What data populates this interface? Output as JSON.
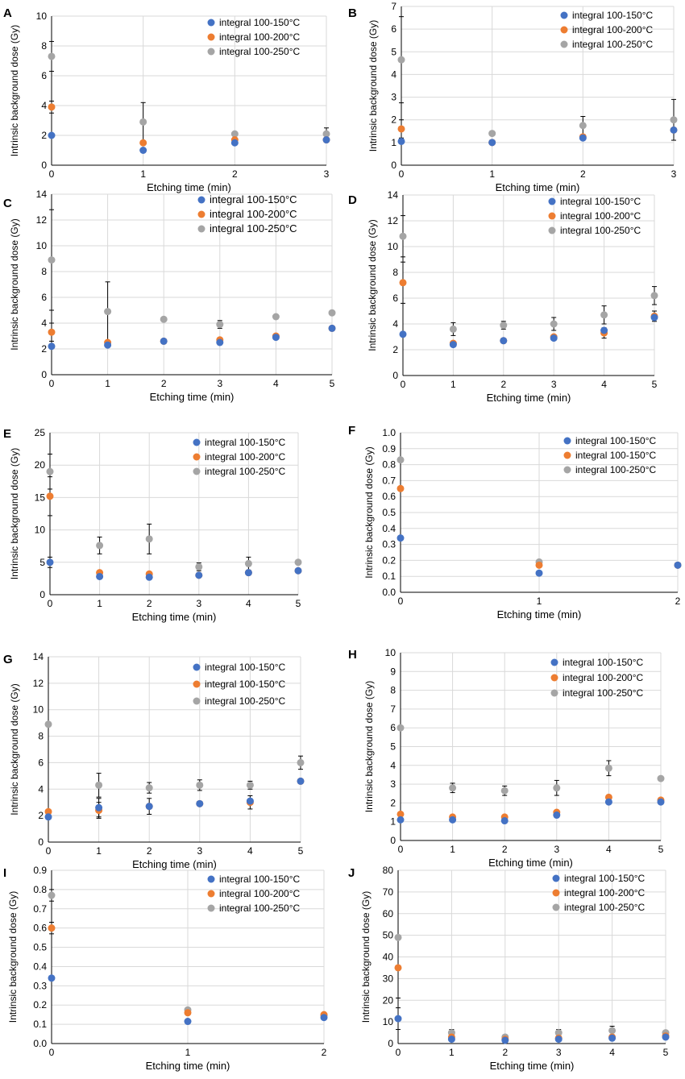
{
  "figure": {
    "colors": {
      "s1": "#4472C4",
      "s2": "#ED7D31",
      "s3": "#A5A5A5",
      "grid": "#D9D9D9",
      "axis": "#000000",
      "error": "#000000"
    }
  },
  "chart_data": [
    {
      "panel": "A",
      "type": "scatter",
      "xlabel": "Etching time (min)",
      "ylabel": "Intrinsic background dose (Gy)",
      "xlim": [
        0,
        3
      ],
      "ylim": [
        0,
        10
      ],
      "xticks": [
        0,
        1,
        2,
        3
      ],
      "yticks": [
        0,
        2,
        4,
        6,
        8,
        10
      ],
      "legend_position": "top-right",
      "grid": true,
      "series": [
        {
          "name": "integral 100-150°C",
          "x": [
            0,
            1,
            2,
            3
          ],
          "y": [
            2.0,
            1.0,
            1.5,
            1.7
          ],
          "err": [
            0,
            0,
            0,
            0
          ]
        },
        {
          "name": "integral 100-200°C",
          "x": [
            0,
            1,
            2,
            3
          ],
          "y": [
            3.9,
            1.5,
            1.7,
            1.7
          ],
          "err": [
            0.4,
            0,
            0,
            0
          ]
        },
        {
          "name": "integral 100-250°C",
          "x": [
            0,
            1,
            2,
            3
          ],
          "y": [
            7.3,
            2.9,
            2.1,
            2.1
          ],
          "err": [
            1.0,
            1.3,
            0,
            0.4
          ]
        }
      ]
    },
    {
      "panel": "B",
      "type": "scatter",
      "xlabel": "Etching time (min)",
      "ylabel": "Intrinsic background dose (Gy)",
      "xlim": [
        0,
        3
      ],
      "ylim": [
        0,
        7
      ],
      "xticks": [
        0,
        1,
        2,
        3
      ],
      "yticks": [
        0,
        1,
        2,
        3,
        4,
        5,
        6,
        7
      ],
      "legend_position": "top-right",
      "grid": true,
      "series": [
        {
          "name": "integral 100-150°C",
          "x": [
            0,
            1,
            2,
            3
          ],
          "y": [
            1.05,
            1.0,
            1.2,
            1.55
          ],
          "err": [
            0,
            0,
            0,
            0
          ]
        },
        {
          "name": "integral 100-200°C",
          "x": [
            0,
            1,
            2,
            3
          ],
          "y": [
            1.6,
            1.0,
            1.25,
            1.55
          ],
          "err": [
            0.4,
            0,
            0,
            0
          ]
        },
        {
          "name": "integral 100-250°C",
          "x": [
            0,
            1,
            2,
            3
          ],
          "y": [
            4.65,
            1.4,
            1.75,
            2.0
          ],
          "err": [
            1.9,
            0,
            0.4,
            0.9
          ]
        }
      ]
    },
    {
      "panel": "C",
      "type": "scatter",
      "xlabel": "Etching time (min)",
      "ylabel": "Intrinsic background dose (Gy)",
      "xlim": [
        0,
        5
      ],
      "ylim": [
        0,
        14
      ],
      "xticks": [
        0,
        1,
        2,
        3,
        4,
        5
      ],
      "yticks": [
        0,
        2,
        4,
        6,
        8,
        10,
        12,
        14
      ],
      "legend_position": "top-right",
      "grid": true,
      "series": [
        {
          "name": "integral 100-150°C",
          "x": [
            0,
            1,
            2,
            3,
            4,
            5
          ],
          "y": [
            2.2,
            2.3,
            2.6,
            2.5,
            2.9,
            3.6
          ],
          "err": [
            0,
            0,
            0,
            0,
            0,
            0
          ]
        },
        {
          "name": "integral 100-200°C",
          "x": [
            0,
            1,
            2,
            3,
            4,
            5
          ],
          "y": [
            3.3,
            2.5,
            2.6,
            2.7,
            3.0,
            3.6
          ],
          "err": [
            0.7,
            0,
            0,
            0,
            0,
            0
          ]
        },
        {
          "name": "integral 100-250°C",
          "x": [
            0,
            1,
            2,
            3,
            4,
            5
          ],
          "y": [
            8.9,
            4.9,
            4.3,
            3.9,
            4.5,
            4.8
          ],
          "err": [
            3.9,
            2.3,
            0,
            0.3,
            0,
            0
          ]
        }
      ]
    },
    {
      "panel": "D",
      "type": "scatter",
      "xlabel": "Etching time (min)",
      "ylabel": "Intrinsic background dose (Gy)",
      "xlim": [
        0,
        5
      ],
      "ylim": [
        0,
        14
      ],
      "xticks": [
        0,
        1,
        2,
        3,
        4,
        5
      ],
      "yticks": [
        0,
        2,
        4,
        6,
        8,
        10,
        12,
        14
      ],
      "legend_position": "top-right",
      "grid": true,
      "series": [
        {
          "name": "integral 100-150°C",
          "x": [
            0,
            1,
            2,
            3,
            4,
            5
          ],
          "y": [
            3.2,
            2.4,
            2.7,
            2.9,
            3.5,
            4.5
          ],
          "err": [
            0,
            0,
            0,
            0,
            0,
            0
          ]
        },
        {
          "name": "integral 100-200°C",
          "x": [
            0,
            1,
            2,
            3,
            4,
            5
          ],
          "y": [
            7.2,
            2.5,
            2.7,
            3.0,
            3.3,
            4.6
          ],
          "err": [
            1.6,
            0,
            0,
            0,
            0.4,
            0.4
          ]
        },
        {
          "name": "integral 100-250°C",
          "x": [
            0,
            1,
            2,
            3,
            4,
            5
          ],
          "y": [
            10.8,
            3.6,
            3.9,
            4.0,
            4.7,
            6.2
          ],
          "err": [
            1.6,
            0.5,
            0.3,
            0.5,
            0.7,
            0.7
          ]
        }
      ]
    },
    {
      "panel": "E",
      "type": "scatter",
      "xlabel": "Etching time (min)",
      "ylabel": "Intrinsic background dose (Gy)",
      "xlim": [
        0,
        5
      ],
      "ylim": [
        0,
        25
      ],
      "xticks": [
        0,
        1,
        2,
        3,
        4,
        5
      ],
      "yticks": [
        0,
        5,
        10,
        15,
        20,
        25
      ],
      "legend_position": "top-right",
      "grid": true,
      "series": [
        {
          "name": "integral 100-150°C",
          "x": [
            0,
            1,
            2,
            3,
            4,
            5
          ],
          "y": [
            5.0,
            2.8,
            2.7,
            3.0,
            3.4,
            3.7
          ],
          "err": [
            0.8,
            0,
            0,
            0,
            0,
            0
          ]
        },
        {
          "name": "integral 100-200°C",
          "x": [
            0,
            1,
            2,
            3,
            4,
            5
          ],
          "y": [
            15.2,
            3.4,
            3.2,
            3.0,
            3.4,
            3.7
          ],
          "err": [
            3.0,
            0,
            0,
            0,
            0,
            0
          ]
        },
        {
          "name": "integral 100-250°C",
          "x": [
            0,
            1,
            2,
            3,
            4,
            5
          ],
          "y": [
            19.0,
            7.6,
            8.6,
            4.3,
            4.8,
            5.0
          ],
          "err": [
            2.7,
            1.3,
            2.3,
            0.6,
            1.0,
            0
          ]
        }
      ]
    },
    {
      "panel": "F",
      "type": "scatter",
      "xlabel": "Etching time (min)",
      "ylabel": "Intrinsic background dose (Gy)",
      "xlim": [
        0,
        2
      ],
      "ylim": [
        0,
        1.0
      ],
      "xticks": [
        0,
        1,
        2
      ],
      "yticks": [
        0.0,
        0.1,
        0.2,
        0.3,
        0.4,
        0.5,
        0.6,
        0.7,
        0.8,
        0.9,
        1.0
      ],
      "legend_position": "top-right",
      "grid": true,
      "series": [
        {
          "name": "integral 100-150°C",
          "x": [
            0,
            1,
            2
          ],
          "y": [
            0.34,
            0.12,
            0.17
          ],
          "err": [
            0,
            0,
            0
          ]
        },
        {
          "name": "integral 100-150°C",
          "x": [
            0,
            1,
            2
          ],
          "y": [
            0.65,
            0.17,
            0.17
          ],
          "err": [
            0,
            0,
            0
          ]
        },
        {
          "name": "integral 100-250°C",
          "x": [
            0,
            1,
            2
          ],
          "y": [
            0.83,
            0.19,
            0.17
          ],
          "err": [
            0,
            0,
            0
          ]
        }
      ]
    },
    {
      "panel": "G",
      "type": "scatter",
      "xlabel": "Etching time (min)",
      "ylabel": "Intrinsic background dose (Gy)",
      "xlim": [
        0,
        5
      ],
      "ylim": [
        0,
        14
      ],
      "xticks": [
        0,
        1,
        2,
        3,
        4,
        5
      ],
      "yticks": [
        0,
        2,
        4,
        6,
        8,
        10,
        12,
        14
      ],
      "legend_position": "top-right",
      "grid": true,
      "series": [
        {
          "name": "integral 100-150°C",
          "x": [
            0,
            1,
            2,
            3,
            4,
            5
          ],
          "y": [
            1.9,
            2.6,
            2.7,
            2.9,
            3.1,
            4.6
          ],
          "err": [
            0,
            0.7,
            0,
            0,
            0,
            0
          ]
        },
        {
          "name": "integral 100-150°C",
          "x": [
            0,
            1,
            2,
            3,
            4,
            5
          ],
          "y": [
            2.3,
            2.4,
            2.7,
            2.9,
            3.0,
            4.6
          ],
          "err": [
            0,
            0.6,
            0.6,
            0,
            0.5,
            0
          ]
        },
        {
          "name": "integral 100-250°C",
          "x": [
            0,
            1,
            2,
            3,
            4,
            5
          ],
          "y": [
            8.9,
            4.3,
            4.1,
            4.3,
            4.3,
            6.0
          ],
          "err": [
            0,
            0.9,
            0.4,
            0.4,
            0.3,
            0.5
          ]
        }
      ]
    },
    {
      "panel": "H",
      "type": "scatter",
      "xlabel": "Etching time (min)",
      "ylabel": "Intrinsic background dose (Gy)",
      "xlim": [
        0,
        5
      ],
      "ylim": [
        0,
        10
      ],
      "xticks": [
        0,
        1,
        2,
        3,
        4,
        5
      ],
      "yticks": [
        0,
        1,
        2,
        3,
        4,
        5,
        6,
        7,
        8,
        9,
        10
      ],
      "legend_position": "top-right",
      "grid": true,
      "series": [
        {
          "name": "integral 100-150°C",
          "x": [
            0,
            1,
            2,
            3,
            4,
            5
          ],
          "y": [
            1.1,
            1.1,
            1.05,
            1.35,
            2.05,
            2.05
          ],
          "err": [
            0,
            0,
            0,
            0,
            0,
            0
          ]
        },
        {
          "name": "integral 100-200°C",
          "x": [
            0,
            1,
            2,
            3,
            4,
            5
          ],
          "y": [
            1.4,
            1.25,
            1.25,
            1.5,
            2.3,
            2.15
          ],
          "err": [
            0,
            0,
            0,
            0,
            0,
            0
          ]
        },
        {
          "name": "integral 100-250°C",
          "x": [
            0,
            1,
            2,
            3,
            4,
            5
          ],
          "y": [
            6.0,
            2.8,
            2.65,
            2.8,
            3.85,
            3.3
          ],
          "err": [
            0,
            0.25,
            0.25,
            0.4,
            0.4,
            0
          ]
        }
      ]
    },
    {
      "panel": "I",
      "type": "scatter",
      "xlabel": "Etching time (min)",
      "ylabel": "Intrinsic background dose (Gy)",
      "xlim": [
        0,
        2
      ],
      "ylim": [
        0,
        0.9
      ],
      "xticks": [
        0,
        1,
        2
      ],
      "yticks": [
        0.0,
        0.1,
        0.2,
        0.3,
        0.4,
        0.5,
        0.6,
        0.7,
        0.8,
        0.9
      ],
      "legend_position": "top-right",
      "grid": true,
      "series": [
        {
          "name": "integral 100-150°C",
          "x": [
            0,
            1,
            2
          ],
          "y": [
            0.34,
            0.115,
            0.135
          ],
          "err": [
            0,
            0,
            0
          ]
        },
        {
          "name": "integral 100-200°C",
          "x": [
            0,
            1,
            2
          ],
          "y": [
            0.6,
            0.16,
            0.15
          ],
          "err": [
            0.03,
            0,
            0
          ]
        },
        {
          "name": "integral 100-250°C",
          "x": [
            0,
            1,
            2
          ],
          "y": [
            0.77,
            0.175,
            0.145
          ],
          "err": [
            0.03,
            0,
            0
          ]
        }
      ]
    },
    {
      "panel": "J",
      "type": "scatter",
      "xlabel": "Etching time (min)",
      "ylabel": "Intrinsic background dose (Gy)",
      "xlim": [
        0,
        5
      ],
      "ylim": [
        0,
        80
      ],
      "xticks": [
        0,
        1,
        2,
        3,
        4,
        5
      ],
      "yticks": [
        0,
        10,
        20,
        30,
        40,
        50,
        60,
        70,
        80
      ],
      "legend_position": "top-right",
      "grid": true,
      "series": [
        {
          "name": "integral 100-150°C",
          "x": [
            0,
            1,
            2,
            3,
            4,
            5
          ],
          "y": [
            11.5,
            2.0,
            1.5,
            2.0,
            2.5,
            3.0
          ],
          "err": [
            5.0,
            0,
            0,
            0,
            0,
            0
          ]
        },
        {
          "name": "integral 100-200°C",
          "x": [
            0,
            1,
            2,
            3,
            4,
            5
          ],
          "y": [
            35.0,
            3.0,
            2.0,
            2.5,
            3.0,
            3.5
          ],
          "err": [
            14.0,
            0,
            0,
            0,
            0,
            0
          ]
        },
        {
          "name": "integral 100-250°C",
          "x": [
            0,
            1,
            2,
            3,
            4,
            5
          ],
          "y": [
            49.0,
            5.0,
            3.0,
            5.0,
            6.0,
            5.0
          ],
          "err": [
            0,
            1.5,
            0,
            1.5,
            2.0,
            0
          ]
        }
      ]
    }
  ]
}
